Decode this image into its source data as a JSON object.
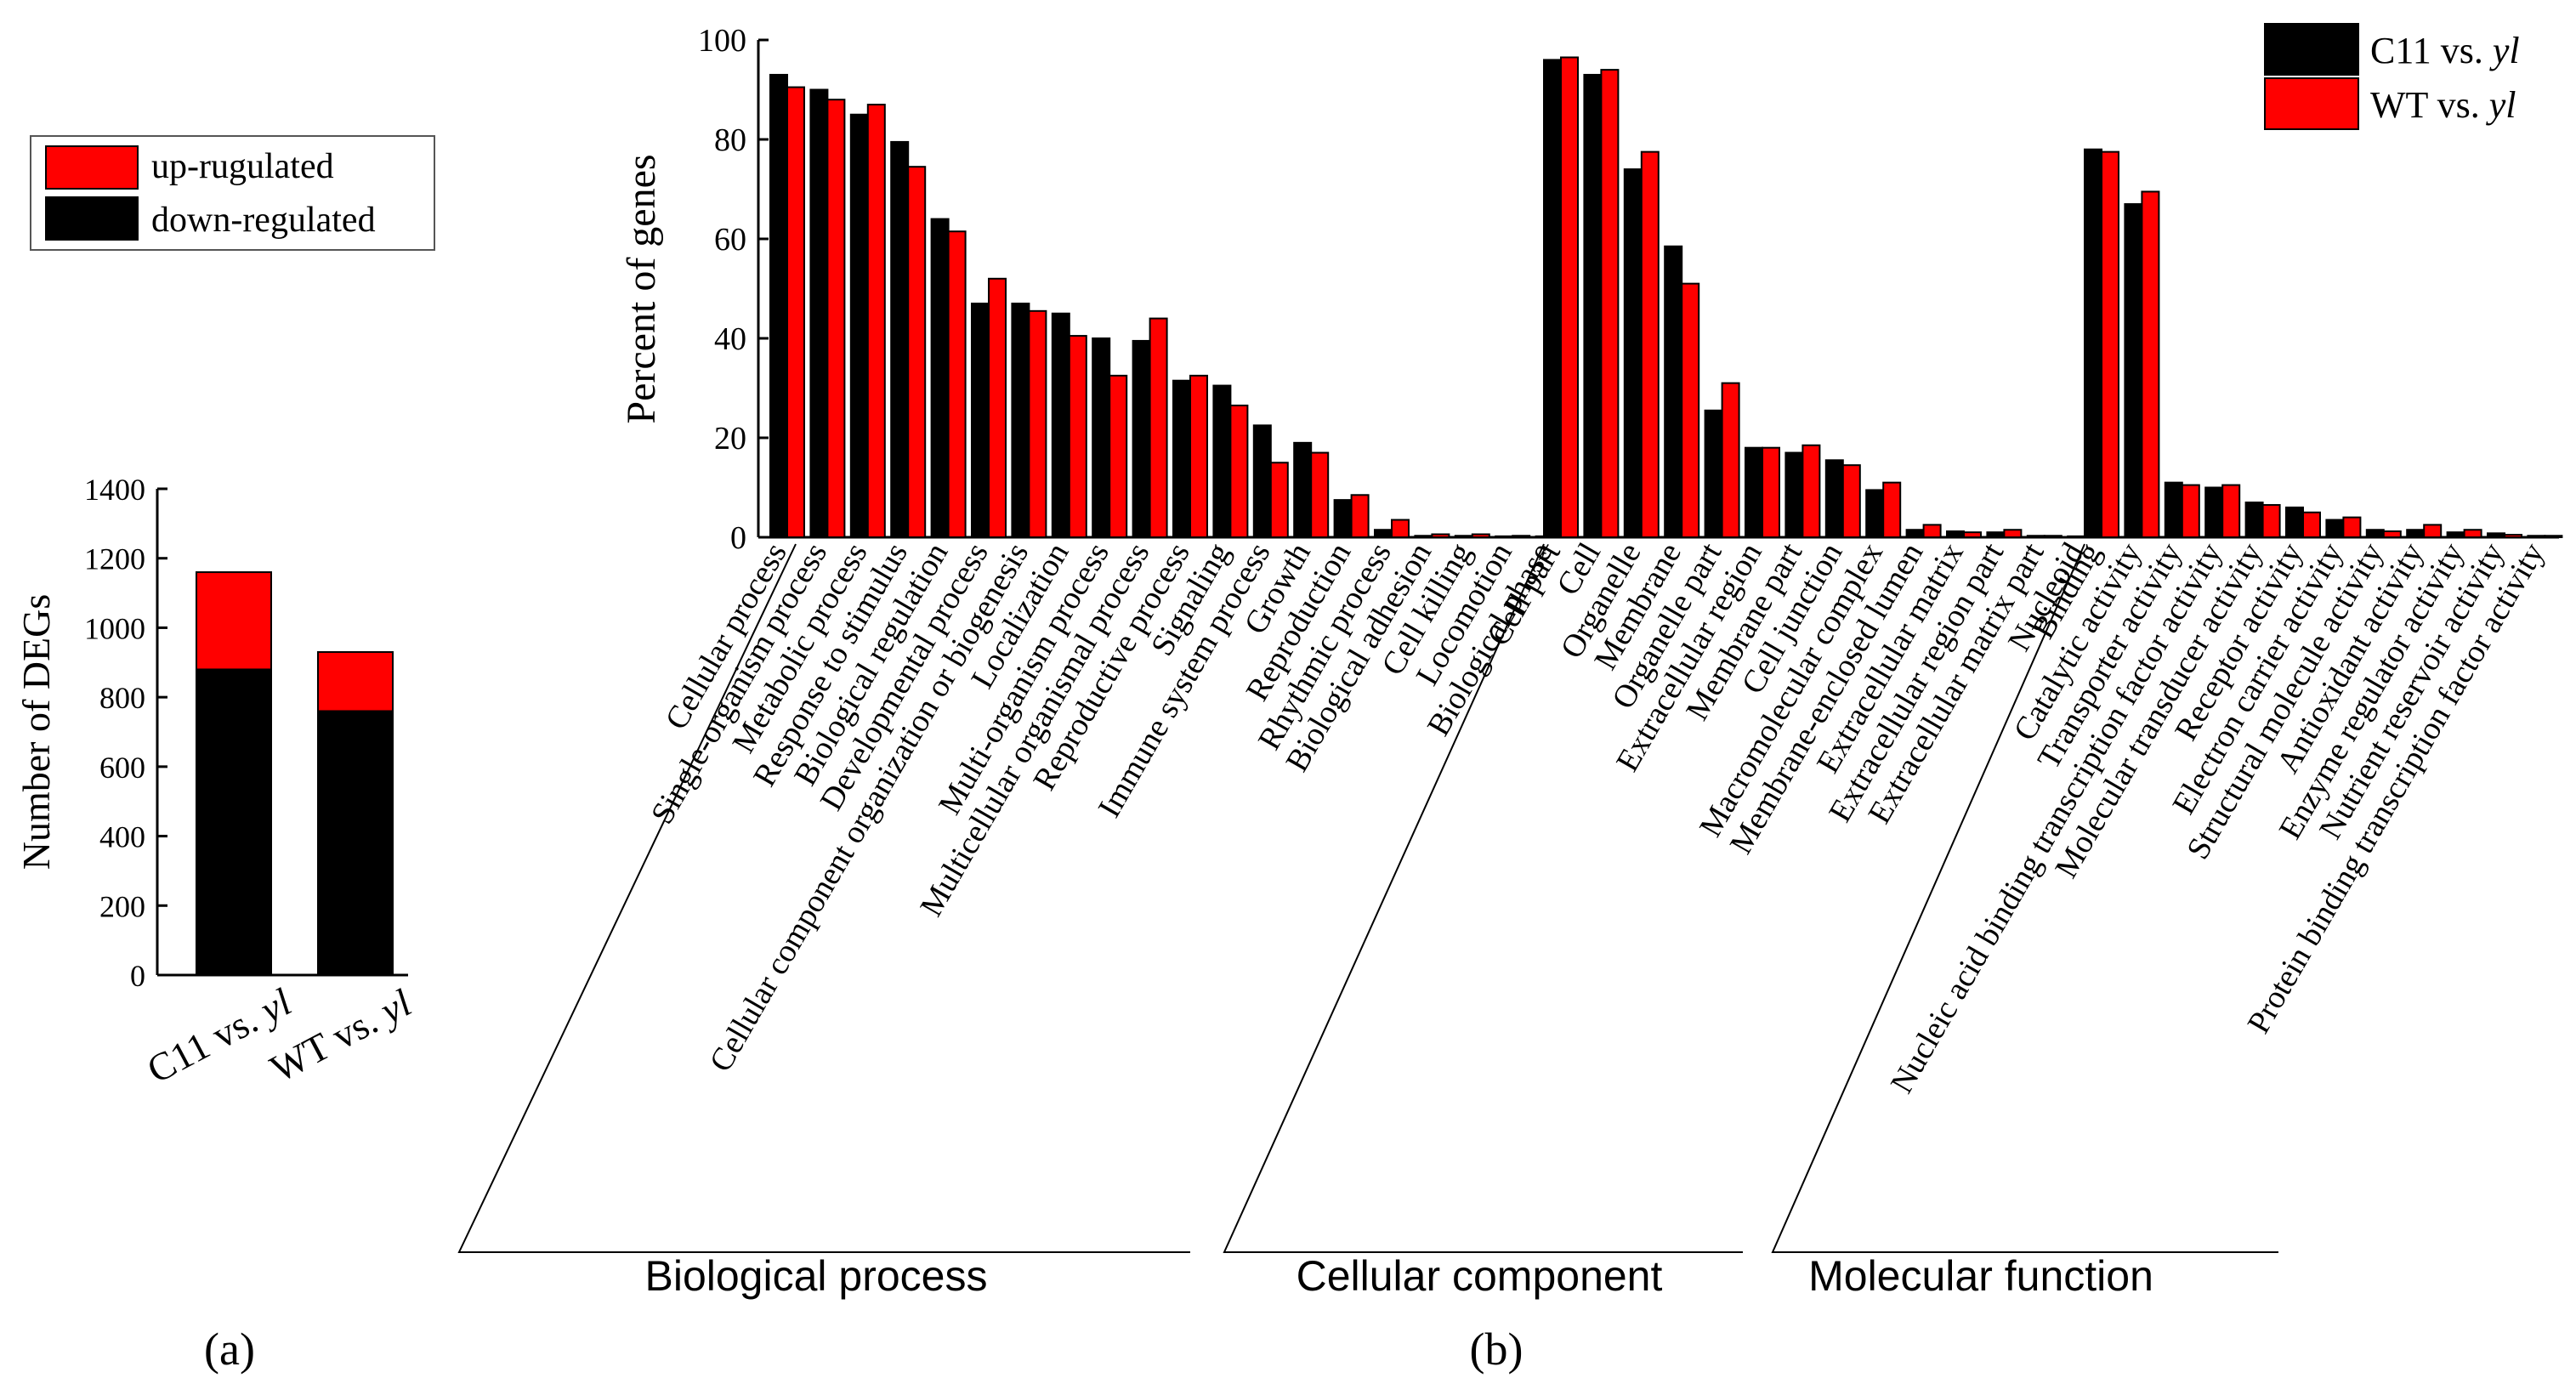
{
  "colors": {
    "down": "#000000",
    "up": "#ff0000",
    "series1": "#000000",
    "series2": "#ff0000"
  },
  "panel_labels": {
    "a": "(a)",
    "b": "(b)"
  },
  "chart_data": [
    {
      "type": "bar",
      "stacked": true,
      "ylabel": "Number of DEGs",
      "ylim": [
        0,
        1400
      ],
      "yticks": [
        0,
        200,
        400,
        600,
        800,
        1000,
        1200,
        1400
      ],
      "categories": [
        {
          "main": "C11 vs. ",
          "ital": "yl"
        },
        {
          "main": "WT vs. ",
          "ital": "yl"
        }
      ],
      "series": [
        {
          "name": "down-regulated",
          "values": [
            880,
            760
          ]
        },
        {
          "name": "up-rugulated",
          "values": [
            280,
            170
          ]
        }
      ],
      "legend": [
        {
          "label": "up-rugulated",
          "color_key": "up"
        },
        {
          "label": "down-regulated",
          "color_key": "down"
        }
      ],
      "legend_position": "top-left"
    },
    {
      "type": "bar",
      "ylabel": "Percent of genes",
      "ylim": [
        0,
        100
      ],
      "yticks": [
        0,
        20,
        40,
        60,
        80,
        100
      ],
      "legend_position": "top-right",
      "series": [
        {
          "name": "C11 vs. ",
          "ital": "yl"
        },
        {
          "name": "WT vs. ",
          "ital": "yl"
        }
      ],
      "groups": [
        {
          "name": "Biological process",
          "categories": [
            {
              "label": "Cellular process",
              "values": [
                93,
                90.5
              ]
            },
            {
              "label": "Single-organism process",
              "values": [
                90,
                88
              ]
            },
            {
              "label": "Metabolic process",
              "values": [
                85,
                87
              ]
            },
            {
              "label": "Response to stimulus",
              "values": [
                79.5,
                74.5
              ]
            },
            {
              "label": "Biological regulation",
              "values": [
                64,
                61.5
              ]
            },
            {
              "label": "Developmental process",
              "values": [
                47,
                52
              ]
            },
            {
              "label": "Cellular component organization or biogenesis",
              "values": [
                47,
                45.5
              ]
            },
            {
              "label": "Localization",
              "values": [
                45,
                40.5
              ]
            },
            {
              "label": "Multi-organism process",
              "values": [
                40,
                32.5
              ]
            },
            {
              "label": "Multicellular organismal process",
              "values": [
                39.5,
                44
              ]
            },
            {
              "label": "Reproductive process",
              "values": [
                31.5,
                32.5
              ]
            },
            {
              "label": "Signaling",
              "values": [
                30.5,
                26.5
              ]
            },
            {
              "label": "Immune system process",
              "values": [
                22.5,
                15
              ]
            },
            {
              "label": "Growth",
              "values": [
                19,
                17
              ]
            },
            {
              "label": "Reproduction",
              "values": [
                7.5,
                8.5
              ]
            },
            {
              "label": "Rhythmic process",
              "values": [
                1.5,
                3.5
              ]
            },
            {
              "label": "Biological adhesion",
              "values": [
                0.3,
                0.6
              ]
            },
            {
              "label": "Cell killing",
              "values": [
                0.3,
                0.6
              ]
            },
            {
              "label": "Locomotion",
              "values": [
                0.2,
                0.3
              ]
            },
            {
              "label": "Biological phase",
              "values": [
                0.2,
                0.3
              ]
            }
          ]
        },
        {
          "name": "Cellular component",
          "categories": [
            {
              "label": "Cell part",
              "values": [
                96,
                96.5
              ]
            },
            {
              "label": "Cell",
              "values": [
                93,
                94
              ]
            },
            {
              "label": "Organelle",
              "values": [
                74,
                77.5
              ]
            },
            {
              "label": "Membrane",
              "values": [
                58.5,
                51
              ]
            },
            {
              "label": "Organelle part",
              "values": [
                25.5,
                31
              ]
            },
            {
              "label": "Extracellular region",
              "values": [
                18,
                18
              ]
            },
            {
              "label": "Membrane part",
              "values": [
                17,
                18.5
              ]
            },
            {
              "label": "Cell junction",
              "values": [
                15.5,
                14.5
              ]
            },
            {
              "label": "Macromolecular complex",
              "values": [
                9.5,
                11
              ]
            },
            {
              "label": "Membrane-enclosed lumen",
              "values": [
                1.5,
                2.5
              ]
            },
            {
              "label": "Extracellular matrix",
              "values": [
                1.2,
                1.0
              ]
            },
            {
              "label": "Extracellular region part",
              "values": [
                1.0,
                1.5
              ]
            },
            {
              "label": "Extracellular matrix part",
              "values": [
                0.3,
                0.3
              ]
            },
            {
              "label": "Nucleoid",
              "values": [
                0.2,
                0.2
              ]
            }
          ]
        },
        {
          "name": "Molecular function",
          "categories": [
            {
              "label": "Binding",
              "values": [
                78,
                77.5
              ]
            },
            {
              "label": "Catalytic activity",
              "values": [
                67,
                69.5
              ]
            },
            {
              "label": "Transporter activity",
              "values": [
                11,
                10.5
              ]
            },
            {
              "label": "Nucleic acid binding transcription factor activity",
              "values": [
                10,
                10.5
              ]
            },
            {
              "label": "Molecular transducer activity",
              "values": [
                7,
                6.5
              ]
            },
            {
              "label": "Receptor activity",
              "values": [
                6,
                5
              ]
            },
            {
              "label": "Electron carrier activity",
              "values": [
                3.5,
                4
              ]
            },
            {
              "label": "Structural molecule activity",
              "values": [
                1.5,
                1.2
              ]
            },
            {
              "label": "Antioxidant activity",
              "values": [
                1.5,
                2.5
              ]
            },
            {
              "label": "Enzyme regulator activity",
              "values": [
                1.0,
                1.5
              ]
            },
            {
              "label": "Nutrient reservoir activity",
              "values": [
                0.8,
                0.5
              ]
            },
            {
              "label": "Protein binding transcription factor activity",
              "values": [
                0.3,
                0.3
              ]
            }
          ]
        }
      ]
    }
  ]
}
